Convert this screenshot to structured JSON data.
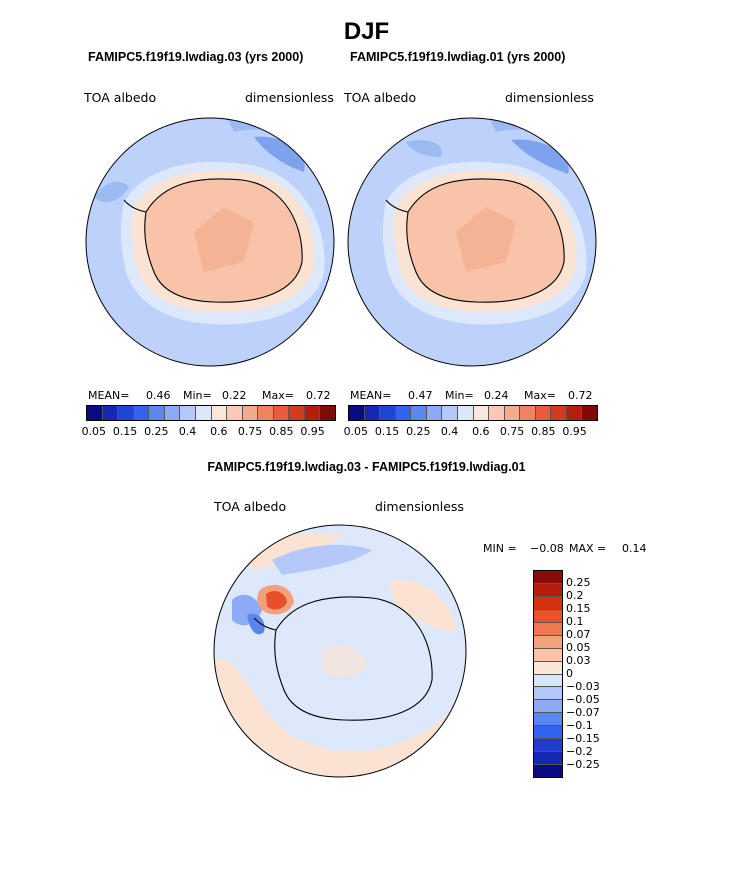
{
  "page": {
    "season": "DJF",
    "left_title": "FAMIPC5.f19f19.lwdiag.03 (yrs 2000)",
    "right_title": "FAMIPC5.f19f19.lwdiag.01 (yrs 2000)",
    "diff_title": "FAMIPC5.f19f19.lwdiag.03 - FAMIPC5.f19f19.lwdiag.01"
  },
  "panels": [
    {
      "variable": "TOA albedo",
      "units": "dimensionless",
      "mean_label": "MEAN=",
      "mean": "0.46",
      "min_label": "Min=",
      "min": "0.22",
      "max_label": "Max=",
      "max": "0.72"
    },
    {
      "variable": "TOA albedo",
      "units": "dimensionless",
      "mean_label": "MEAN=",
      "mean": "0.47",
      "min_label": "Min=",
      "min": "0.24",
      "max_label": "Max=",
      "max": "0.72"
    }
  ],
  "diff_panel": {
    "variable": "TOA albedo",
    "units": "dimensionless",
    "min_label": "MIN =",
    "min": "−0.08",
    "max_label": "MAX =",
    "max": "0.14"
  },
  "abs_colorbar": {
    "tick_labels": [
      "0.05",
      "0.15",
      "0.25",
      "0.4",
      "0.6",
      "0.75",
      "0.85",
      "0.95"
    ],
    "colors": [
      "#0a0a82",
      "#1428b4",
      "#1e46d2",
      "#3264f0",
      "#5a87f0",
      "#8caaf5",
      "#b4c8fa",
      "#dce8fa",
      "#fae6dc",
      "#fac8b4",
      "#f5aa8c",
      "#f08264",
      "#eb5a3c",
      "#d23c1e",
      "#b41e0a",
      "#820a05"
    ]
  },
  "diff_colorbar": {
    "labels": [
      "0.25",
      "0.2",
      "0.15",
      "0.1",
      "0.07",
      "0.05",
      "0.03",
      "0",
      "−0.03",
      "−0.05",
      "−0.07",
      "−0.1",
      "−0.15",
      "−0.2",
      "−0.25"
    ],
    "colors": [
      "#8c0a05",
      "#b41e0a",
      "#d2320f",
      "#eb5028",
      "#f07850",
      "#f5a07d",
      "#fac3a5",
      "#fae6d7",
      "#d7e6fa",
      "#b4c8fa",
      "#8caaf5",
      "#5a87f0",
      "#3264eb",
      "#1e3cd2",
      "#1428b4",
      "#0a0a82"
    ]
  },
  "map_colors": {
    "ocean_low": "#bcd2fa",
    "ocean_mid": "#9bbaf2",
    "ocean_dark": "#7ea2ee",
    "sea_ice_pale": "#dde8fb",
    "coast_warm": "#fbe3d4",
    "ice_sheet": "#f8c3a9",
    "ice_sheet_dark": "#f4a88a",
    "diff_neutral_pos": "#fbe3d4",
    "diff_neutral_neg": "#dde8fb",
    "diff_hot": "#e8502c",
    "diff_cold": "#5b85ee"
  }
}
